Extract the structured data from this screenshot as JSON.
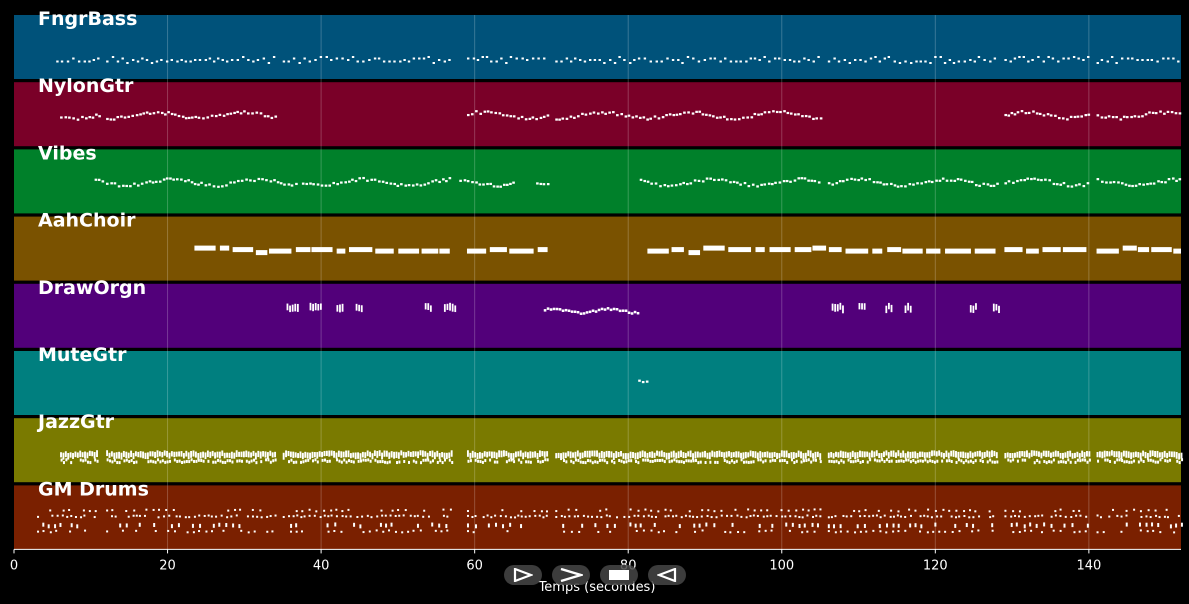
{
  "chart_data": {
    "type": "piano-roll",
    "xlabel": "Temps (secondes)",
    "xlim": [
      0,
      152
    ],
    "xticks": [
      0,
      20,
      40,
      60,
      80,
      100,
      120,
      140
    ],
    "grid": true,
    "tracks": [
      {
        "name": "FngrBass",
        "color": "#00527a",
        "segments": [
          [
            5.5,
            11
          ],
          [
            12,
            34
          ],
          [
            35,
            57
          ],
          [
            59,
            69.5
          ],
          [
            70.5,
            105
          ],
          [
            106,
            128
          ],
          [
            129,
            140
          ],
          [
            141,
            152
          ]
        ],
        "style": "dots"
      },
      {
        "name": "NylonGtr",
        "color": "#7a0028",
        "segments": [
          [
            6,
            11
          ],
          [
            12,
            34
          ],
          [
            59,
            69.5
          ],
          [
            70.5,
            105
          ],
          [
            129,
            140
          ],
          [
            141,
            152
          ]
        ],
        "style": "wave"
      },
      {
        "name": "Vibes",
        "color": "#00802a",
        "segments": [
          [
            10.5,
            37
          ],
          [
            37.5,
            57
          ],
          [
            58,
            65
          ],
          [
            68,
            69.5
          ],
          [
            81.5,
            105
          ],
          [
            106,
            128
          ],
          [
            129,
            140
          ],
          [
            141,
            152
          ]
        ],
        "style": "wave"
      },
      {
        "name": "AahChoir",
        "color": "#7a5200",
        "segments": [
          [
            23.5,
            57
          ],
          [
            59,
            69.5
          ],
          [
            82.5,
            128
          ],
          [
            129,
            140
          ],
          [
            141,
            152
          ]
        ],
        "style": "blocks"
      },
      {
        "name": "DrawOrgn",
        "color": "#52007a",
        "segments": [
          [
            35.5,
            37
          ],
          [
            38.5,
            40
          ],
          [
            42,
            43
          ],
          [
            44.5,
            45.5
          ],
          [
            53.5,
            54.5
          ],
          [
            56,
            57.5
          ],
          [
            69,
            81.5
          ],
          [
            106.5,
            108
          ],
          [
            110,
            111
          ],
          [
            113.5,
            114.5
          ],
          [
            116,
            117
          ],
          [
            124.5,
            125.5
          ],
          [
            127.5,
            128.5
          ]
        ],
        "style": "marks"
      },
      {
        "name": "MuteGtr",
        "color": "#007f7f",
        "segments": [
          [
            81.3,
            82.3
          ]
        ],
        "style": "wave"
      },
      {
        "name": "JazzGtr",
        "color": "#7a7a00",
        "segments": [
          [
            6,
            11
          ],
          [
            12,
            34
          ],
          [
            35,
            57
          ],
          [
            59,
            69.5
          ],
          [
            70.5,
            105
          ],
          [
            106,
            128
          ],
          [
            129,
            140
          ],
          [
            141,
            152
          ]
        ],
        "style": "dense"
      },
      {
        "name": "GM Drums",
        "color": "#7a2000",
        "segments": [
          [
            3,
            11
          ],
          [
            12,
            34
          ],
          [
            35,
            57
          ],
          [
            59,
            69.5
          ],
          [
            70.5,
            105
          ],
          [
            106,
            128
          ],
          [
            129,
            140
          ],
          [
            141,
            152
          ]
        ],
        "style": "drums"
      }
    ]
  },
  "controls": [
    {
      "name": "play-icon",
      "glyph": "play"
    },
    {
      "name": "forward-icon",
      "glyph": "chevron-right"
    },
    {
      "name": "stop-icon",
      "glyph": "stop"
    },
    {
      "name": "rewind-icon",
      "glyph": "rewind"
    }
  ]
}
